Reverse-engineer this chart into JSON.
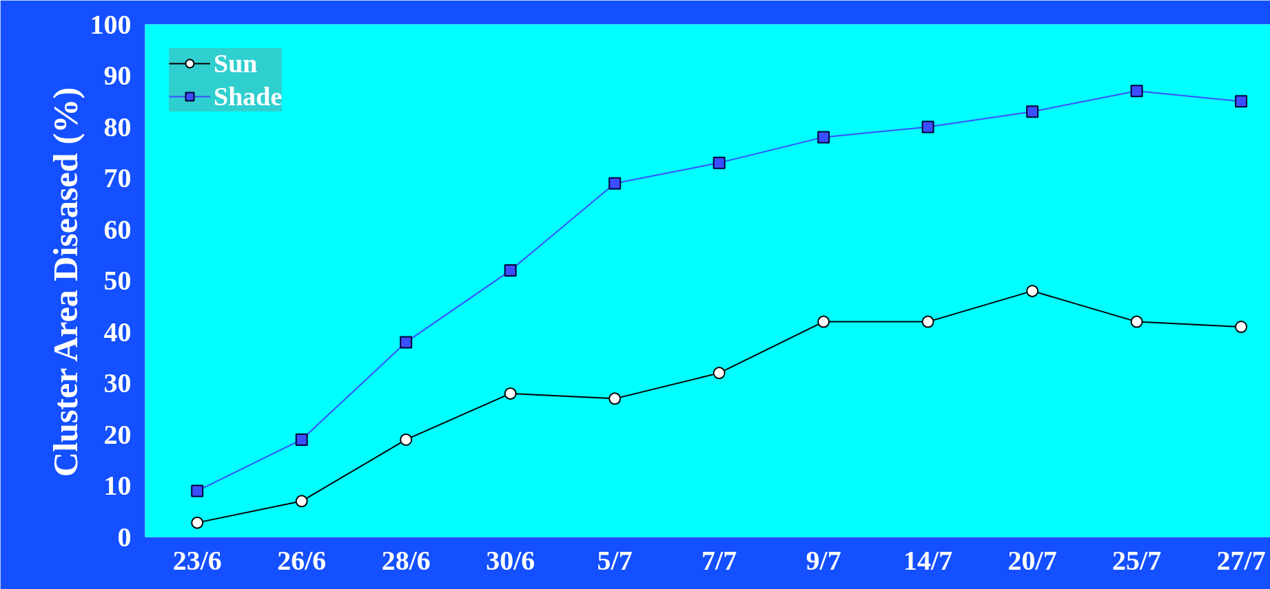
{
  "chart_data": {
    "type": "line",
    "ylabel": "Cluster Area Diseased (%)",
    "categories": [
      "23/6",
      "26/6",
      "28/6",
      "30/6",
      "5/7",
      "7/7",
      "9/7",
      "14/7",
      "20/7",
      "25/7",
      "27/7"
    ],
    "series": [
      {
        "name": "Sun",
        "color": "#000000",
        "marker": "circle",
        "values": [
          2.8,
          7,
          19,
          28,
          27,
          32,
          42,
          42,
          48,
          42,
          41
        ]
      },
      {
        "name": "Shade",
        "color": "#3a4fff",
        "marker": "square",
        "values": [
          9,
          19,
          38,
          52,
          69,
          73,
          78,
          80,
          83,
          87,
          85
        ]
      }
    ],
    "ylim": [
      0,
      100
    ],
    "yticks": [
      0,
      10,
      20,
      30,
      40,
      50,
      60,
      70,
      80,
      90,
      100
    ],
    "grid": false,
    "legend": "top left",
    "line_style": "solid"
  }
}
